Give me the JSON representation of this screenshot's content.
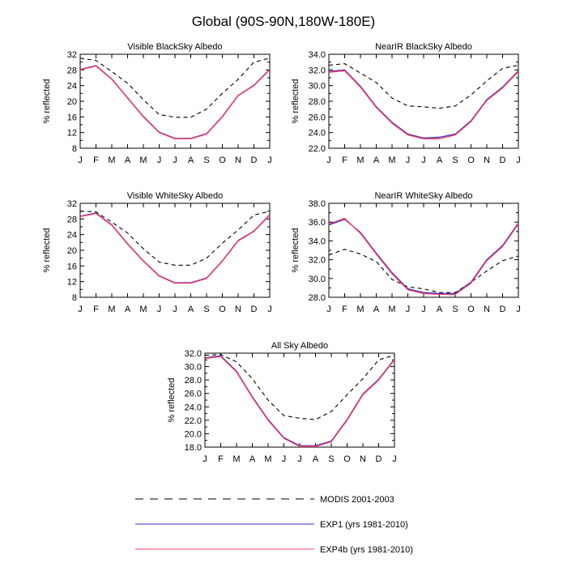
{
  "figure": {
    "title": "Global (90S-90N,180W-180E)"
  },
  "legend": {
    "entries": [
      {
        "label": "MODIS 2001-2003",
        "color": "#000000",
        "dash": true
      },
      {
        "label": "EXP1 (yrs 1981-2010)",
        "color": "#3b2fc9",
        "dash": false
      },
      {
        "label": "EXP4b (yrs 1981-2010)",
        "color": "#ff3b5c",
        "dash": false
      }
    ]
  },
  "chart_data": [
    {
      "type": "line",
      "title": "Visible BlackSky Albedo",
      "xlabel": "",
      "ylabel": "% reflected",
      "categories": [
        "J",
        "F",
        "M",
        "A",
        "M",
        "J",
        "J",
        "A",
        "S",
        "O",
        "N",
        "D",
        "J"
      ],
      "ylim": [
        8,
        32
      ],
      "yticks": [
        "8",
        "12",
        "16",
        "20",
        "24",
        "28",
        "32"
      ],
      "series": [
        {
          "name": "MODIS 2001-2003",
          "values": [
            31.0,
            30.4,
            27.6,
            24.6,
            20.4,
            16.6,
            15.9,
            15.9,
            18.0,
            22.0,
            25.6,
            30.0,
            31.0
          ]
        },
        {
          "name": "EXP1 (yrs 1981-2010)",
          "values": [
            28.0,
            29.0,
            25.6,
            20.8,
            16.0,
            12.0,
            10.4,
            10.4,
            11.6,
            16.0,
            21.4,
            24.0,
            28.0
          ]
        },
        {
          "name": "EXP4b (yrs 1981-2010)",
          "values": [
            28.1,
            29.1,
            25.7,
            20.9,
            16.1,
            12.1,
            10.5,
            10.5,
            11.7,
            16.1,
            21.5,
            24.1,
            28.1
          ]
        }
      ]
    },
    {
      "type": "line",
      "title": "NearIR BlackSky Albedo",
      "xlabel": "",
      "ylabel": "% reflected",
      "categories": [
        "J",
        "F",
        "M",
        "A",
        "M",
        "J",
        "J",
        "A",
        "S",
        "O",
        "N",
        "D",
        "J"
      ],
      "ylim": [
        22,
        34
      ],
      "yticks": [
        "22.0",
        "24.0",
        "26.0",
        "28.0",
        "30.0",
        "32.0",
        "34.0"
      ],
      "series": [
        {
          "name": "MODIS 2001-2003",
          "values": [
            32.6,
            32.8,
            31.6,
            30.4,
            28.4,
            27.4,
            27.3,
            27.1,
            27.4,
            28.8,
            30.6,
            32.2,
            32.6
          ]
        },
        {
          "name": "EXP1 (yrs 1981-2010)",
          "values": [
            31.7,
            31.9,
            29.8,
            27.2,
            25.2,
            23.7,
            23.2,
            23.2,
            23.7,
            25.4,
            28.1,
            29.7,
            31.8
          ]
        },
        {
          "name": "EXP4b (yrs 1981-2010)",
          "values": [
            31.8,
            32.0,
            29.9,
            27.3,
            25.3,
            23.8,
            23.3,
            23.4,
            23.8,
            25.5,
            28.2,
            29.8,
            31.9
          ]
        }
      ]
    },
    {
      "type": "line",
      "title": "Visible WhiteSky Albedo",
      "xlabel": "",
      "ylabel": "% reflected",
      "categories": [
        "J",
        "F",
        "M",
        "A",
        "M",
        "J",
        "J",
        "A",
        "S",
        "O",
        "N",
        "D",
        "J"
      ],
      "ylim": [
        8,
        32
      ],
      "yticks": [
        "8",
        "12",
        "16",
        "20",
        "24",
        "28",
        "32"
      ],
      "series": [
        {
          "name": "MODIS 2001-2003",
          "values": [
            30.0,
            29.8,
            27.2,
            24.4,
            20.4,
            17.0,
            16.2,
            16.2,
            18.0,
            21.8,
            25.2,
            29.0,
            30.0
          ]
        },
        {
          "name": "EXP1 (yrs 1981-2010)",
          "values": [
            28.6,
            29.4,
            26.4,
            21.6,
            17.2,
            13.4,
            11.6,
            11.6,
            12.8,
            17.2,
            22.4,
            24.8,
            29.0
          ]
        },
        {
          "name": "EXP4b (yrs 1981-2010)",
          "values": [
            28.7,
            29.5,
            26.5,
            21.7,
            17.3,
            13.5,
            11.7,
            11.7,
            12.9,
            17.3,
            22.5,
            24.9,
            29.1
          ]
        }
      ]
    },
    {
      "type": "line",
      "title": "NearIR WhiteSky Albedo",
      "xlabel": "",
      "ylabel": "% reflected",
      "categories": [
        "J",
        "F",
        "M",
        "A",
        "M",
        "J",
        "J",
        "A",
        "S",
        "O",
        "N",
        "D",
        "J"
      ],
      "ylim": [
        28,
        38
      ],
      "yticks": [
        "28.0",
        "30.0",
        "32.0",
        "34.0",
        "36.0",
        "38.0"
      ],
      "series": [
        {
          "name": "MODIS 2001-2003",
          "values": [
            32.5,
            33.1,
            32.6,
            31.8,
            29.9,
            29.1,
            28.9,
            28.5,
            28.5,
            29.6,
            30.8,
            31.9,
            32.4
          ]
        },
        {
          "name": "EXP1 (yrs 1981-2010)",
          "values": [
            35.8,
            36.4,
            34.8,
            32.6,
            30.5,
            28.8,
            28.4,
            28.3,
            28.3,
            29.5,
            31.9,
            33.4,
            35.8
          ]
        },
        {
          "name": "EXP4b (yrs 1981-2010)",
          "values": [
            35.7,
            36.3,
            34.9,
            32.7,
            30.6,
            28.9,
            28.5,
            28.4,
            28.4,
            29.6,
            32.0,
            33.5,
            35.9
          ]
        }
      ]
    },
    {
      "type": "line",
      "title": "All Sky Albedo",
      "xlabel": "",
      "ylabel": "% reflected",
      "categories": [
        "J",
        "F",
        "M",
        "A",
        "M",
        "J",
        "J",
        "A",
        "S",
        "O",
        "N",
        "D",
        "J"
      ],
      "ylim": [
        18,
        32
      ],
      "yticks": [
        "18.0",
        "20.0",
        "22.0",
        "24.0",
        "26.0",
        "28.0",
        "30.0",
        "32.0"
      ],
      "series": [
        {
          "name": "MODIS 2001-2003",
          "values": [
            31.7,
            31.8,
            30.7,
            28.2,
            25.0,
            22.7,
            22.3,
            22.1,
            23.3,
            25.8,
            28.2,
            31.0,
            31.7
          ]
        },
        {
          "name": "EXP1 (yrs 1981-2010)",
          "values": [
            31.2,
            31.5,
            29.2,
            25.4,
            22.0,
            19.3,
            18.1,
            18.1,
            18.8,
            22.0,
            25.8,
            28.0,
            31.0
          ]
        },
        {
          "name": "EXP4b (yrs 1981-2010)",
          "values": [
            31.3,
            31.6,
            29.3,
            25.5,
            22.1,
            19.4,
            18.2,
            18.2,
            18.9,
            22.1,
            25.9,
            28.1,
            31.1
          ]
        }
      ]
    }
  ]
}
